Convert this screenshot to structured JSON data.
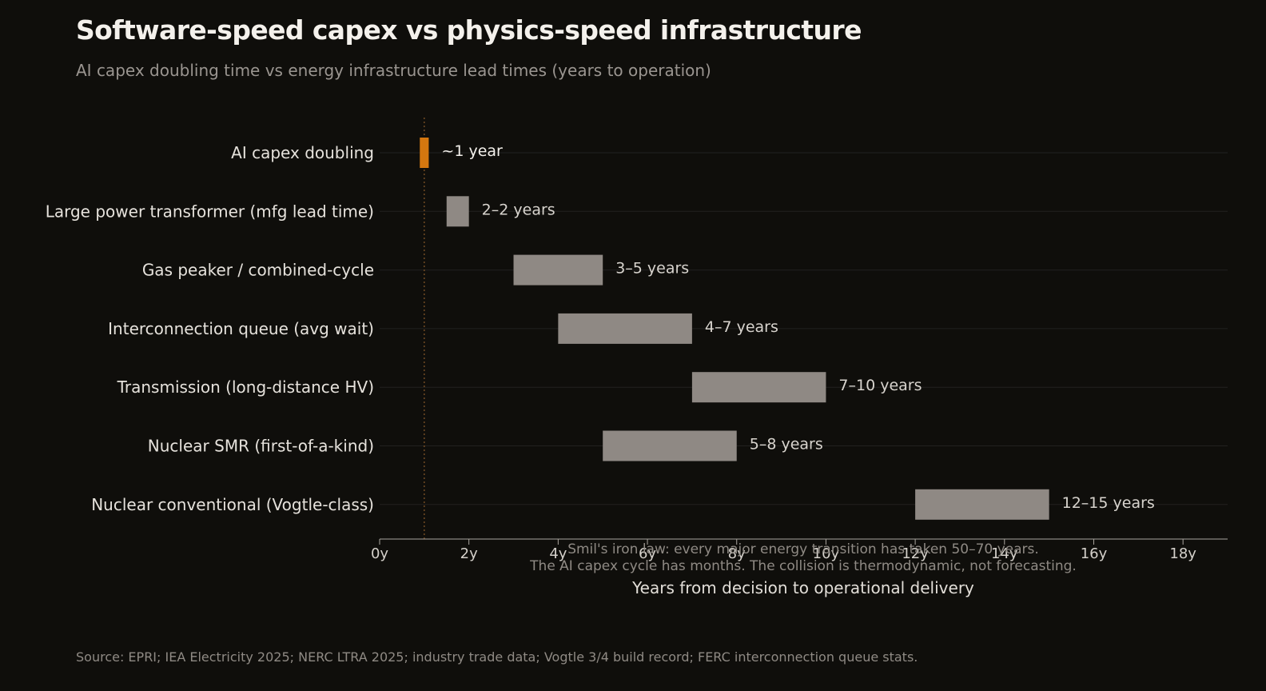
{
  "header": {
    "title": "Software-speed capex vs physics-speed infrastructure",
    "subtitle": "AI capex doubling time vs energy infrastructure lead times (years to operation)"
  },
  "footer": {
    "source": "Source: EPRI; IEA Electricity 2025; NERC LTRA 2025; industry trade data; Vogtle 3/4 build record; FERC interconnection queue stats."
  },
  "colors": {
    "background": "#0f0e0b",
    "highlight": "#d4770f",
    "bar": "#8f8984",
    "grid": "#222120",
    "axis": "#aaa59f",
    "reference_line": "#8a5a2a"
  },
  "chart_data": {
    "type": "bar",
    "orientation": "horizontal-range",
    "categories": [
      "AI capex doubling",
      "Large power transformer (mfg lead time)",
      "Gas peaker / combined-cycle",
      "Interconnection queue (avg wait)",
      "Transmission (long-distance HV)",
      "Nuclear SMR (first-of-a-kind)",
      "Nuclear conventional (Vogtle-class)"
    ],
    "series": [
      {
        "ranges": [
          [
            0.9,
            1.1
          ],
          [
            1.5,
            2
          ],
          [
            3,
            5
          ],
          [
            4,
            7
          ],
          [
            7,
            10
          ],
          [
            5,
            8
          ],
          [
            12,
            15
          ]
        ],
        "labels": [
          "~1 year",
          "2–2 years",
          "3–5 years",
          "4–7 years",
          "7–10 years",
          "5–8 years",
          "12–15 years"
        ]
      }
    ],
    "highlight_index": 0,
    "reference_line_x": 1,
    "xlim": [
      0,
      19
    ],
    "xticks": [
      0,
      2,
      4,
      6,
      8,
      10,
      12,
      14,
      16,
      18
    ],
    "xtick_labels": [
      "0y",
      "2y",
      "4y",
      "6y",
      "8y",
      "10y",
      "12y",
      "14y",
      "16y",
      "18y"
    ],
    "xlabel": "Years from decision to operational delivery",
    "ylabel": "",
    "grid": "horizontal",
    "annotation": [
      "Smil's iron law: every major energy transition has taken 50–70 years.",
      "The AI capex cycle has months. The collision is thermodynamic, not forecasting."
    ]
  }
}
